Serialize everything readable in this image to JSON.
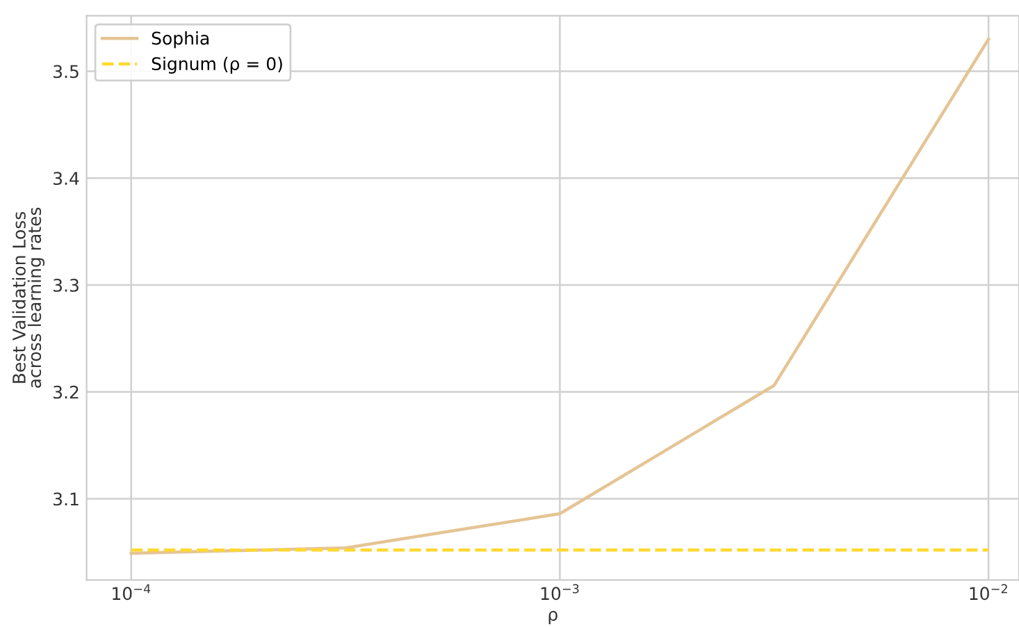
{
  "chart_data": {
    "type": "line",
    "xlabel": "ρ",
    "ylabel": "Best Validation Loss\nacross learning rates",
    "log": "x",
    "xlim": [
      7.87e-05,
      0.01178
    ],
    "ylim": [
      3.024,
      3.552
    ],
    "xticks": [
      {
        "value": 0.0001,
        "label": "10$^{−4}$"
      },
      {
        "value": 0.001,
        "label": "10$^{−3}$"
      },
      {
        "value": 0.01,
        "label": "10$^{−2}$"
      }
    ],
    "yticks": [
      3.1,
      3.2,
      3.3,
      3.4,
      3.5
    ],
    "grid": true,
    "legend": "top left",
    "series": [
      {
        "name": "Sophia",
        "color": "#e5c494",
        "line_style": "solid",
        "x": [
          0.0001,
          0.000316,
          0.001,
          0.00316,
          0.01
        ],
        "values": [
          3.049,
          3.054,
          3.086,
          3.206,
          3.53
        ]
      },
      {
        "name": "Signum (ρ = 0)",
        "color": "#ffd92f",
        "line_style": "dashed",
        "x": [
          0.0001,
          0.01
        ],
        "values": [
          3.052,
          3.052
        ]
      }
    ]
  }
}
